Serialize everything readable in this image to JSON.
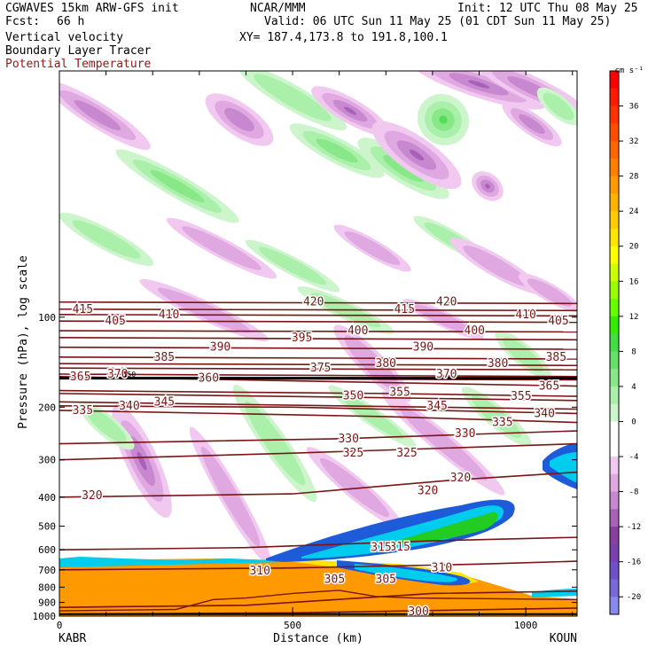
{
  "header": {
    "model": "CGWAVES 15km ARW-GFS init",
    "org": "NCAR/MMM",
    "init": "Init: 12 UTC Thu 08 May 25",
    "fcst_label": "Fcst:",
    "fcst_value": "66 h",
    "valid": "Valid: 06 UTC Sun 11 May 25 (01 CDT Sun 11 May 25)",
    "field1": "Vertical velocity",
    "field2": "Boundary Layer Tracer",
    "field3": "Potential Temperature",
    "xy": "XY= 187.4,173.8 to 191.8,100.1",
    "field3_color": "#8b1a1a"
  },
  "chart_data": {
    "type": "contour-cross-section",
    "ylabel": "Pressure (hPa), log scale",
    "xlabel": "Distance (km)",
    "xlim": [
      0,
      1110
    ],
    "ylim": [
      1000,
      15
    ],
    "y_scale": "log",
    "x_ticks": [
      0,
      500,
      1000
    ],
    "y_ticks": [
      100,
      200,
      300,
      400,
      500,
      600,
      700,
      800,
      900,
      1000
    ],
    "left_station": "KABR",
    "right_station": "KOUN",
    "colorbar": {
      "units": "cm s⁻¹",
      "labels": [
        36,
        32,
        28,
        24,
        20,
        16,
        12,
        8,
        4,
        0,
        -4,
        -8,
        -12,
        -16,
        -20
      ],
      "bins": [
        {
          "max": 40,
          "color": "#ff0000"
        },
        {
          "max": 38,
          "color": "#ff1a00"
        },
        {
          "max": 36,
          "color": "#ff3300"
        },
        {
          "max": 34,
          "color": "#ff4d00"
        },
        {
          "max": 32,
          "color": "#ff6600"
        },
        {
          "max": 30,
          "color": "#ff8000"
        },
        {
          "max": 28,
          "color": "#ff9900"
        },
        {
          "max": 26,
          "color": "#ffb300"
        },
        {
          "max": 24,
          "color": "#ffcc00"
        },
        {
          "max": 22,
          "color": "#ffe600"
        },
        {
          "max": 20,
          "color": "#ffff00"
        },
        {
          "max": 18,
          "color": "#ccff00"
        },
        {
          "max": 16,
          "color": "#99ff00"
        },
        {
          "max": 14,
          "color": "#66ff00"
        },
        {
          "max": 12,
          "color": "#33ee00"
        },
        {
          "max": 10,
          "color": "#44dd44"
        },
        {
          "max": 8,
          "color": "#66e066"
        },
        {
          "max": 6,
          "color": "#88e888"
        },
        {
          "max": 4,
          "color": "#aaf0aa"
        },
        {
          "max": 2,
          "color": "#ccf5cc"
        },
        {
          "max": 0,
          "color": "#ffffff"
        },
        {
          "max": -2,
          "color": "#ffffff"
        },
        {
          "max": -4,
          "color": "#f0c8f0"
        },
        {
          "max": -6,
          "color": "#e0a8e0"
        },
        {
          "max": -8,
          "color": "#c888d0"
        },
        {
          "max": -10,
          "color": "#a860b8"
        },
        {
          "max": -12,
          "color": "#8840a0"
        },
        {
          "max": -14,
          "color": "#7a40b0"
        },
        {
          "max": -16,
          "color": "#7050c8"
        },
        {
          "max": -18,
          "color": "#7868d8"
        },
        {
          "max": -20,
          "color": "#8888ee"
        }
      ]
    },
    "theta_contours": [
      {
        "label": 300,
        "points": [
          [
            0,
            985
          ],
          [
            500,
            975
          ],
          [
            1110,
            940
          ]
        ],
        "label_at": [
          770,
          968
        ]
      },
      {
        "label": 305,
        "points": [
          [
            0,
            935
          ],
          [
            400,
            920
          ],
          [
            800,
            840
          ],
          [
            1110,
            825
          ]
        ],
        "label_at": [
          590,
          753
        ]
      },
      {
        "label": 310,
        "points": [
          [
            0,
            700
          ],
          [
            500,
            690
          ],
          [
            900,
            670
          ],
          [
            1110,
            655
          ]
        ],
        "label_at": [
          820,
          690
        ]
      },
      {
        "label": 315,
        "points": [
          [
            0,
            600
          ],
          [
            400,
            590
          ],
          [
            800,
            560
          ],
          [
            1110,
            545
          ]
        ],
        "label_at": [
          730,
          588
        ]
      },
      {
        "label": 320,
        "points": [
          [
            0,
            400
          ],
          [
            500,
            390
          ],
          [
            850,
            350
          ],
          [
            1110,
            330
          ]
        ],
        "label_at": [
          70,
          395
        ]
      },
      {
        "label": 325,
        "points": [
          [
            0,
            300
          ],
          [
            500,
            285
          ],
          [
            1110,
            265
          ]
        ],
        "label_at": [
          745,
          285
        ]
      },
      {
        "label": 330,
        "points": [
          [
            0,
            265
          ],
          [
            600,
            255
          ],
          [
            1110,
            240
          ]
        ],
        "label_at": [
          620,
          255
        ]
      },
      {
        "label": 335,
        "points": [
          [
            0,
            205
          ],
          [
            700,
            215
          ],
          [
            1110,
            225
          ]
        ],
        "label_at": [
          50,
          205
        ]
      },
      {
        "label": 340,
        "points": [
          [
            0,
            198
          ],
          [
            500,
            200
          ],
          [
            1110,
            210
          ]
        ],
        "label_at": [
          150,
          198
        ]
      },
      {
        "label": 345,
        "points": [
          [
            0,
            192
          ],
          [
            600,
            198
          ],
          [
            1110,
            203
          ]
        ],
        "label_at": [
          225,
          192
        ]
      },
      {
        "label": 350,
        "points": [
          [
            0,
            180
          ],
          [
            600,
            185
          ],
          [
            1110,
            190
          ]
        ],
        "label_at": [
          630,
          183
        ]
      },
      {
        "label": 355,
        "points": [
          [
            0,
            176
          ],
          [
            700,
            180
          ],
          [
            1110,
            184
          ]
        ],
        "label_at": [
          730,
          178
        ]
      },
      {
        "label": 360,
        "points": [
          [
            0,
            160
          ],
          [
            1110,
            162
          ]
        ],
        "label_at": [
          320,
          160
        ]
      },
      {
        "label": 365,
        "points": [
          [
            0,
            158
          ],
          [
            1110,
            170
          ]
        ],
        "label_at": [
          45,
          158
        ]
      },
      {
        "label": 370,
        "points": [
          [
            0,
            155
          ],
          [
            1110,
            158
          ]
        ],
        "label_at": [
          125,
          155
        ]
      },
      {
        "label": 375,
        "points": [
          [
            0,
            148
          ],
          [
            1110,
            150
          ]
        ],
        "label_at": [
          560,
          148
        ]
      },
      {
        "label": 380,
        "points": [
          [
            0,
            143
          ],
          [
            1110,
            145
          ]
        ],
        "label_at": [
          700,
          143
        ]
      },
      {
        "label": 385,
        "points": [
          [
            0,
            136
          ],
          [
            1110,
            138
          ]
        ],
        "label_at": [
          225,
          136
        ]
      },
      {
        "label": 390,
        "points": [
          [
            0,
            126
          ],
          [
            1110,
            128
          ]
        ],
        "label_at": [
          345,
          126
        ]
      },
      {
        "label": 395,
        "points": [
          [
            0,
            117
          ],
          [
            1110,
            119
          ]
        ],
        "label_at": [
          520,
          117
        ]
      },
      {
        "label": 400,
        "points": [
          [
            0,
            111
          ],
          [
            1110,
            112
          ]
        ],
        "label_at": [
          640,
          111
        ]
      },
      {
        "label": 405,
        "points": [
          [
            0,
            103
          ],
          [
            1110,
            104
          ]
        ],
        "label_at": [
          120,
          103
        ]
      },
      {
        "label": 410,
        "points": [
          [
            0,
            98
          ],
          [
            1110,
            99
          ]
        ],
        "label_at": [
          235,
          98
        ]
      },
      {
        "label": 415,
        "points": [
          [
            0,
            94
          ],
          [
            1110,
            95
          ]
        ],
        "label_at": [
          50,
          94
        ]
      },
      {
        "label": 420,
        "points": [
          [
            0,
            89
          ],
          [
            1110,
            90
          ]
        ],
        "label_at": [
          545,
          89
        ]
      }
    ],
    "extra_labels": [
      {
        "label": 420,
        "at": [
          830,
          89
        ]
      },
      {
        "label": 415,
        "at": [
          740,
          94
        ]
      },
      {
        "label": 410,
        "at": [
          1000,
          98
        ]
      },
      {
        "label": 405,
        "at": [
          1070,
          103
        ]
      },
      {
        "label": 400,
        "at": [
          890,
          111
        ]
      },
      {
        "label": 390,
        "at": [
          780,
          126
        ]
      },
      {
        "label": 385,
        "at": [
          1065,
          136
        ]
      },
      {
        "label": 380,
        "at": [
          940,
          143
        ]
      },
      {
        "label": 370,
        "at": [
          830,
          155
        ]
      },
      {
        "label": 365,
        "at": [
          1050,
          170
        ]
      },
      {
        "label": 355,
        "at": [
          990,
          184
        ]
      },
      {
        "label": 345,
        "at": [
          810,
          198
        ]
      },
      {
        "label": 340,
        "at": [
          1040,
          210
        ]
      },
      {
        "label": 335,
        "at": [
          950,
          225
        ]
      },
      {
        "label": 330,
        "at": [
          870,
          245
        ]
      },
      {
        "label": 325,
        "at": [
          630,
          285
        ]
      },
      {
        "label": 320,
        "at": [
          790,
          380
        ]
      },
      {
        "label": 320,
        "at": [
          860,
          345
        ]
      },
      {
        "label": 315,
        "at": [
          690,
          590
        ]
      },
      {
        "label": 310,
        "at": [
          430,
          705
        ]
      },
      {
        "label": 305,
        "at": [
          700,
          753
        ]
      }
    ],
    "tropopause_label": "150",
    "tropopause_label_at": [
      150,
      155
    ]
  }
}
